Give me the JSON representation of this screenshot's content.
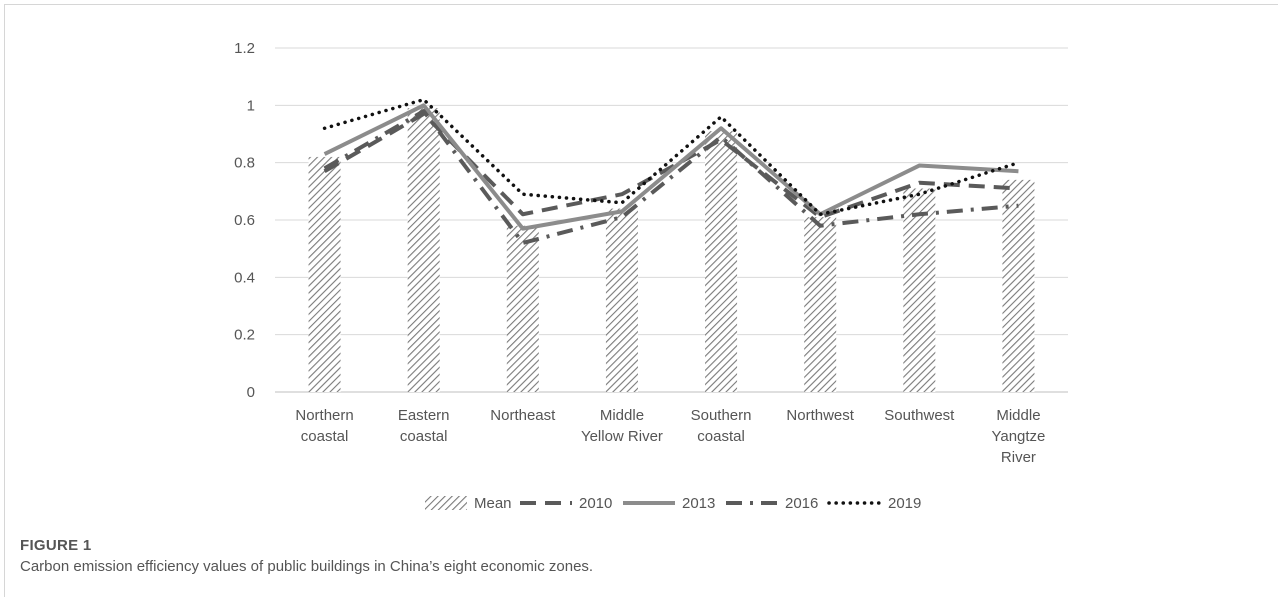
{
  "chart_data": {
    "type": "bar",
    "categories": [
      [
        "Northern",
        "coastal"
      ],
      [
        "Eastern",
        "coastal"
      ],
      [
        "Northeast"
      ],
      [
        "Middle",
        "Yellow River"
      ],
      [
        "Southern",
        "coastal"
      ],
      [
        "Northwest"
      ],
      [
        "Southwest"
      ],
      [
        "Middle",
        "Yangtze",
        "River"
      ]
    ],
    "ylim": [
      0,
      1.2
    ],
    "yticks": [
      "0",
      "0.2",
      "0.4",
      "0.6",
      "0.8",
      "1",
      "1.2"
    ],
    "grid": true,
    "legend_position": "bottom",
    "bar_series": {
      "name": "Mean",
      "values": [
        0.82,
        0.99,
        0.58,
        0.64,
        0.91,
        0.61,
        0.71,
        0.74
      ]
    },
    "line_series": [
      {
        "name": "2010",
        "style": "long-dash",
        "values": [
          0.77,
          0.97,
          0.62,
          0.69,
          0.88,
          0.61,
          0.73,
          0.71
        ]
      },
      {
        "name": "2013",
        "style": "solid",
        "values": [
          0.83,
          1.0,
          0.57,
          0.63,
          0.92,
          0.62,
          0.79,
          0.77
        ]
      },
      {
        "name": "2016",
        "style": "dash-dot",
        "values": [
          0.78,
          0.98,
          0.52,
          0.61,
          0.89,
          0.58,
          0.62,
          0.65
        ]
      },
      {
        "name": "2019",
        "style": "dotted",
        "values": [
          0.92,
          1.02,
          0.69,
          0.66,
          0.96,
          0.62,
          0.69,
          0.8
        ]
      }
    ],
    "colors": {
      "bars": "#7a7a7a",
      "2010": "#5a5a5a",
      "2013": "#8c8c8c",
      "2016": "#5a5a5a",
      "2019": "#111111",
      "grid": "#d9d9d9",
      "text": "#555555"
    }
  },
  "caption": {
    "label": "FIGURE 1",
    "text": "Carbon emission efficiency values of public buildings in China’s eight economic zones."
  }
}
